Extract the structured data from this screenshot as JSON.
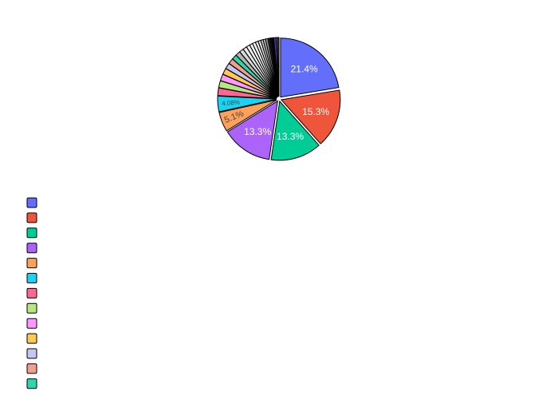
{
  "chart_data": {
    "type": "pie",
    "title": "",
    "legend_position": "bottom-left",
    "slice_outline_color": "#000000",
    "slice_pull": "small gap between all slices",
    "slices": [
      {
        "label": "",
        "percent": 21.4,
        "percent_text": "21.4%",
        "color": "#636efa"
      },
      {
        "label": "",
        "percent": 15.3,
        "percent_text": "15.3%",
        "color": "#EF553B"
      },
      {
        "label": "",
        "percent": 13.3,
        "percent_text": "13.3%",
        "color": "#00cc96"
      },
      {
        "label": "",
        "percent": 13.3,
        "percent_text": "13.3%",
        "color": "#ab63fa"
      },
      {
        "label": "",
        "percent": 5.1,
        "percent_text": "5.1%",
        "color": "#FFA15A"
      },
      {
        "label": "",
        "percent": 4.08,
        "percent_text": "4.08%",
        "color": "#19d3f3"
      },
      {
        "label": "",
        "percent": 2.0,
        "percent_text": "",
        "color": "#FF6692"
      },
      {
        "label": "",
        "percent": 1.8,
        "percent_text": "",
        "color": "#B6E880"
      },
      {
        "label": "",
        "percent": 1.7,
        "percent_text": "",
        "color": "#FF97FF"
      },
      {
        "label": "",
        "percent": 1.6,
        "percent_text": "",
        "color": "#FECB52"
      },
      {
        "label": "",
        "percent": 1.5,
        "percent_text": "",
        "color": "#c6c6f0"
      },
      {
        "label": "",
        "percent": 1.4,
        "percent_text": "",
        "color": "#f0a08c"
      },
      {
        "label": "",
        "percent": 1.3,
        "percent_text": "",
        "color": "#2ed6ac"
      },
      {
        "label": "",
        "percent": 1.2,
        "percent_text": "",
        "color": "#b4b4b4"
      },
      {
        "label": "",
        "percent": 1.1,
        "percent_text": "",
        "color": "#d9d9d9"
      },
      {
        "label": "",
        "percent": 1.0,
        "percent_text": "",
        "color": "#e8e8e8"
      },
      {
        "label": "",
        "percent": 0.9,
        "percent_text": "",
        "color": "#f2f2f2"
      },
      {
        "label": "",
        "percent": 0.8,
        "percent_text": "",
        "color": "#ffffff"
      },
      {
        "label": "",
        "percent": 0.8,
        "percent_text": "",
        "color": "#f7f7f7"
      },
      {
        "label": "",
        "percent": 0.7,
        "percent_text": "",
        "color": "#eeeeee"
      },
      {
        "label": "",
        "percent": 0.7,
        "percent_text": "",
        "color": "#dddddd"
      },
      {
        "label": "",
        "percent": 0.6,
        "percent_text": "",
        "color": "#cccccc"
      },
      {
        "label": "",
        "percent": 0.6,
        "percent_text": "",
        "color": "#bbbbbb"
      },
      {
        "label": "",
        "percent": 0.6,
        "percent_text": "",
        "color": "#999999"
      },
      {
        "label": "",
        "percent": 0.5,
        "percent_text": "",
        "color": "#2a2a2a"
      },
      {
        "label": "",
        "percent": 0.5,
        "percent_text": "",
        "color": "#111111"
      },
      {
        "label": "",
        "percent": 0.5,
        "percent_text": "",
        "color": "#000000"
      },
      {
        "label": "",
        "percent": 0.5,
        "percent_text": "",
        "color": "#4b4bd6"
      },
      {
        "label": "",
        "percent": 0.4,
        "percent_text": "",
        "color": "#9b59b6"
      },
      {
        "label": "",
        "percent": 0.4,
        "percent_text": "",
        "color": "#444444"
      }
    ],
    "legend_entries": [
      {
        "label": "",
        "color": "#636efa"
      },
      {
        "label": "",
        "color": "#EF553B"
      },
      {
        "label": "",
        "color": "#00cc96"
      },
      {
        "label": "",
        "color": "#ab63fa"
      },
      {
        "label": "",
        "color": "#FFA15A"
      },
      {
        "label": "",
        "color": "#19d3f3"
      },
      {
        "label": "",
        "color": "#FF6692"
      },
      {
        "label": "",
        "color": "#B6E880"
      },
      {
        "label": "",
        "color": "#FF97FF"
      },
      {
        "label": "",
        "color": "#FECB52"
      },
      {
        "label": "",
        "color": "#c6c6f0"
      },
      {
        "label": "",
        "color": "#f0a08c"
      },
      {
        "label": "",
        "color": "#2ed6ac"
      }
    ]
  }
}
